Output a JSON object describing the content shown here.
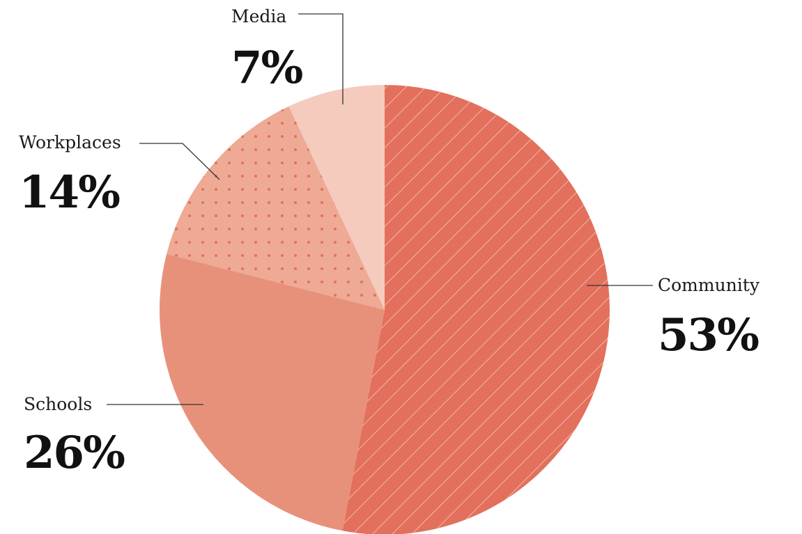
{
  "chart_data": {
    "type": "pie",
    "title": "",
    "categories": [
      "Community",
      "Schools",
      "Workplaces",
      "Media"
    ],
    "values": [
      53,
      26,
      14,
      7
    ],
    "value_labels": [
      "53%",
      "26%",
      "14%",
      "7%"
    ],
    "unit": "%",
    "start_angle_deg": 0,
    "direction": "clockwise",
    "legend": "none",
    "colors": [
      "#e3705c",
      "#e8917a",
      "#eeaa95",
      "#f4cbbd"
    ],
    "patterns": [
      "diagonal-stripes",
      "none",
      "dots",
      "none"
    ]
  }
}
